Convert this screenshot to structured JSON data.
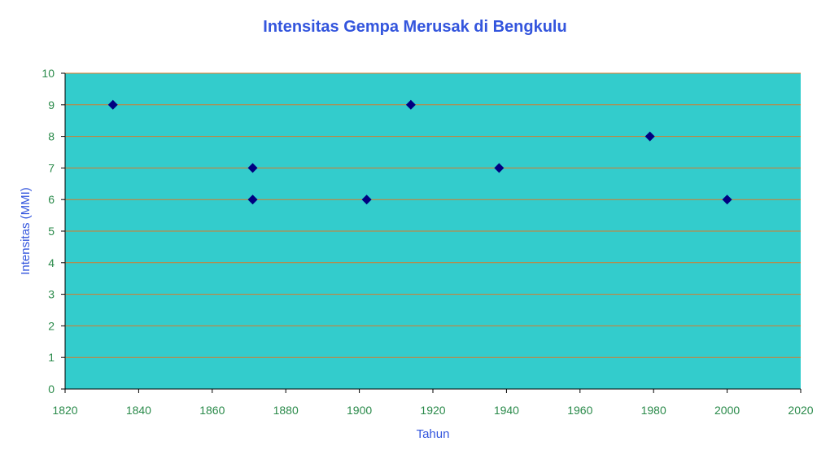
{
  "chart_data": {
    "type": "scatter",
    "title": "Intensitas Gempa Merusak di Bengkulu",
    "xlabel": "Tahun",
    "ylabel": "Intensitas (MMI)",
    "xlim": [
      1820,
      2020
    ],
    "ylim": [
      0,
      10
    ],
    "xticks": [
      1820,
      1840,
      1860,
      1880,
      1900,
      1920,
      1940,
      1960,
      1980,
      2000,
      2020
    ],
    "yticks": [
      0,
      1,
      2,
      3,
      4,
      5,
      6,
      7,
      8,
      9,
      10
    ],
    "grid": "horizontal",
    "marker": "diamond",
    "series": [
      {
        "points": [
          {
            "x": 1833,
            "y": 9
          },
          {
            "x": 1871,
            "y": 7
          },
          {
            "x": 1871,
            "y": 6
          },
          {
            "x": 1902,
            "y": 6
          },
          {
            "x": 1914,
            "y": 9
          },
          {
            "x": 1938,
            "y": 7
          },
          {
            "x": 1979,
            "y": 8
          },
          {
            "x": 2000,
            "y": 6
          }
        ]
      }
    ],
    "colors": {
      "title": "#3355dd",
      "plot_background": "#33cccc",
      "gridline": "#d87a2a",
      "marker": "#000080",
      "tick_labels": "#2a8a4a",
      "axis_title": "#3355dd"
    }
  }
}
